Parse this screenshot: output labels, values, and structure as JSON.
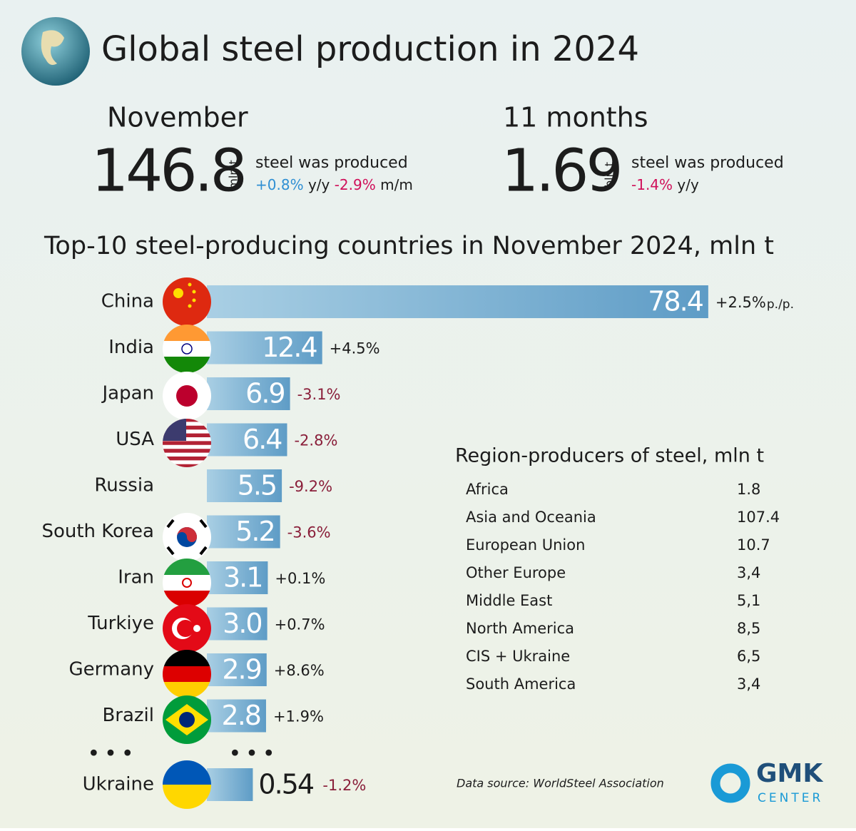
{
  "header": {
    "title": "Global steel production in 2024"
  },
  "summary": [
    {
      "period": "November",
      "value": 146.8,
      "unit": "mln t",
      "caption": "steel was produced",
      "changes": [
        {
          "value": "+0.8%",
          "basis": "y/y"
        },
        {
          "value": "-2.9%",
          "basis": "m/m"
        }
      ]
    },
    {
      "period": "11 months",
      "value": 1.69,
      "unit": "bln t",
      "caption": "steel was produced",
      "changes": [
        {
          "value": "-1.4%",
          "basis": "y/y"
        }
      ]
    }
  ],
  "chart_data": {
    "type": "bar",
    "title": "Top-10 steel-producing countries in November 2024, mln t",
    "categories": [
      "China",
      "India",
      "Japan",
      "USA",
      "Russia",
      "South Korea",
      "Iran",
      "Turkiye",
      "Germany",
      "Brazil"
    ],
    "values": [
      78.4,
      12.4,
      6.9,
      6.4,
      5.5,
      5.2,
      3.1,
      3.0,
      2.9,
      2.8
    ],
    "value_labels": [
      "78.4",
      "12.4",
      "6.9",
      "6.4",
      "5.5",
      "5.2",
      "3.1",
      "3.0",
      "2.9",
      "2.8"
    ],
    "changes": [
      "+2.5%",
      "+4.5%",
      "-3.1%",
      "-2.8%",
      "-9.2%",
      "-3.6%",
      "+0.1%",
      "+0.7%",
      "+8.6%",
      "+1.9%"
    ],
    "first_change_suffix": "p./p.",
    "color": "#6ea8cd",
    "extra": {
      "category": "Ukraine",
      "value": 0.54,
      "change": "-1.2%"
    }
  },
  "regions": {
    "title": "Region-producers of steel, mln t",
    "rows": [
      [
        "Africa",
        "1.8"
      ],
      [
        "Asia and Oceania",
        "107.4"
      ],
      [
        "European Union",
        "10.7"
      ],
      [
        "Other Europe",
        "3,4"
      ],
      [
        "Middle East",
        "5,1"
      ],
      [
        "North America",
        "8,5"
      ],
      [
        "CIS + Ukraine",
        "6,5"
      ],
      [
        "South America",
        "3,4"
      ]
    ]
  },
  "footer": {
    "source": "Data source: WorldSteel Association",
    "logo_main": "GMK",
    "logo_sub": "CENTER"
  }
}
